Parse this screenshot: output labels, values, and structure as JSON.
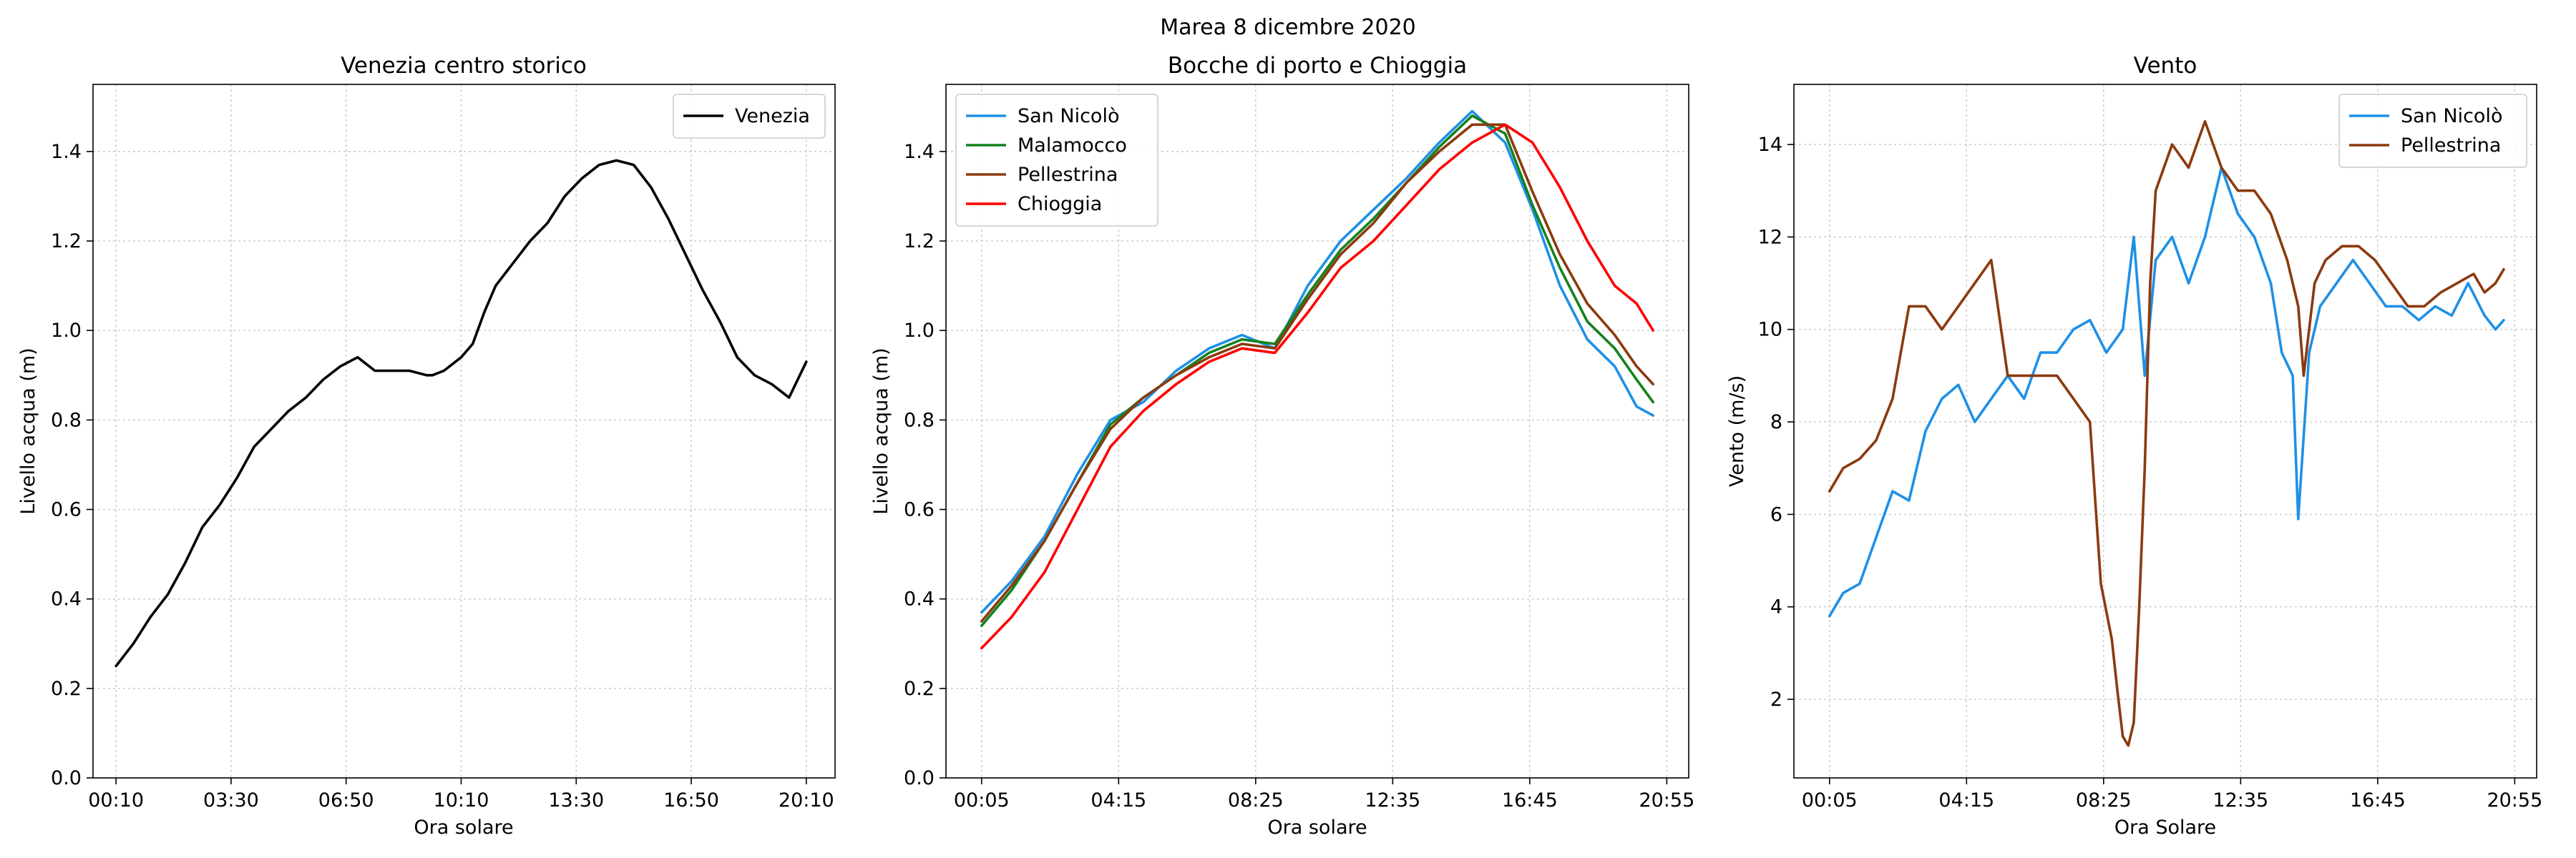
{
  "suptitle": "Marea 8 dicembre 2020",
  "colors": {
    "venezia": "#000000",
    "san_nicolo": "#1e90e6",
    "malamocco": "#14821e",
    "pellestrina": "#8b3a0f",
    "chioggia": "#ff0000",
    "grid": "#c8c8c8"
  },
  "chart_data": [
    {
      "type": "line",
      "title": "Venezia centro storico",
      "xlabel": "Ora solare",
      "ylabel": "Livello acqua (m)",
      "xlim": [
        -30,
        1260
      ],
      "ylim": [
        0,
        1.55
      ],
      "xticks": [
        10,
        210,
        410,
        610,
        810,
        1010,
        1210
      ],
      "xtick_labels": [
        "00:10",
        "03:30",
        "06:50",
        "10:10",
        "13:30",
        "16:50",
        "20:10"
      ],
      "yticks": [
        0.0,
        0.2,
        0.4,
        0.6,
        0.8,
        1.0,
        1.2,
        1.4
      ],
      "ytick_labels": [
        "0.0",
        "0.2",
        "0.4",
        "0.6",
        "0.8",
        "1.0",
        "1.2",
        "1.4"
      ],
      "grid": true,
      "legend": "top-right",
      "series": [
        {
          "name": "Venezia",
          "color": "#000000",
          "x": [
            10,
            40,
            70,
            100,
            130,
            160,
            190,
            220,
            250,
            280,
            310,
            340,
            370,
            400,
            430,
            460,
            490,
            520,
            550,
            560,
            580,
            600,
            610,
            630,
            650,
            670,
            700,
            730,
            760,
            790,
            820,
            850,
            880,
            910,
            940,
            970,
            1000,
            1030,
            1060,
            1090,
            1120,
            1150,
            1180,
            1210
          ],
          "y": [
            0.25,
            0.3,
            0.36,
            0.41,
            0.48,
            0.56,
            0.61,
            0.67,
            0.74,
            0.78,
            0.82,
            0.85,
            0.89,
            0.92,
            0.94,
            0.91,
            0.91,
            0.91,
            0.9,
            0.9,
            0.91,
            0.93,
            0.94,
            0.97,
            1.04,
            1.1,
            1.15,
            1.2,
            1.24,
            1.3,
            1.34,
            1.37,
            1.38,
            1.37,
            1.32,
            1.25,
            1.17,
            1.09,
            1.02,
            0.94,
            0.9,
            0.88,
            0.85,
            0.93
          ]
        }
      ]
    },
    {
      "type": "line",
      "title": "Bocche di porto e Chioggia",
      "xlabel": "Ora solare",
      "ylabel": "Livello acqua (m)",
      "xlim": [
        -60,
        1295
      ],
      "ylim": [
        0,
        1.55
      ],
      "xticks": [
        5,
        255,
        505,
        755,
        1005,
        1255
      ],
      "xtick_labels": [
        "00:05",
        "04:15",
        "08:25",
        "12:35",
        "16:45",
        "20:55"
      ],
      "yticks": [
        0.0,
        0.2,
        0.4,
        0.6,
        0.8,
        1.0,
        1.2,
        1.4
      ],
      "ytick_labels": [
        "0.0",
        "0.2",
        "0.4",
        "0.6",
        "0.8",
        "1.0",
        "1.2",
        "1.4"
      ],
      "grid": true,
      "legend": "top-left",
      "series": [
        {
          "name": "San Nicolò",
          "color": "#1e90e6",
          "x": [
            5,
            60,
            120,
            180,
            240,
            300,
            360,
            420,
            480,
            540,
            600,
            660,
            720,
            780,
            840,
            900,
            960,
            1010,
            1060,
            1110,
            1160,
            1200,
            1230
          ],
          "y": [
            0.37,
            0.44,
            0.54,
            0.68,
            0.8,
            0.84,
            0.91,
            0.96,
            0.99,
            0.96,
            1.1,
            1.2,
            1.27,
            1.34,
            1.42,
            1.49,
            1.42,
            1.27,
            1.1,
            0.98,
            0.92,
            0.83,
            0.81
          ]
        },
        {
          "name": "Malamocco",
          "color": "#14821e",
          "x": [
            5,
            60,
            120,
            180,
            240,
            300,
            360,
            420,
            480,
            540,
            600,
            660,
            720,
            780,
            840,
            900,
            960,
            1010,
            1060,
            1110,
            1160,
            1200,
            1230
          ],
          "y": [
            0.34,
            0.42,
            0.53,
            0.66,
            0.79,
            0.85,
            0.9,
            0.95,
            0.98,
            0.97,
            1.08,
            1.18,
            1.25,
            1.33,
            1.41,
            1.48,
            1.44,
            1.28,
            1.14,
            1.02,
            0.96,
            0.89,
            0.84
          ]
        },
        {
          "name": "Pellestrina",
          "color": "#8b3a0f",
          "x": [
            5,
            60,
            120,
            180,
            240,
            300,
            360,
            420,
            480,
            540,
            600,
            660,
            720,
            780,
            840,
            900,
            960,
            1010,
            1060,
            1110,
            1160,
            1200,
            1230
          ],
          "y": [
            0.35,
            0.43,
            0.53,
            0.66,
            0.78,
            0.85,
            0.9,
            0.94,
            0.97,
            0.96,
            1.07,
            1.17,
            1.24,
            1.33,
            1.4,
            1.46,
            1.46,
            1.31,
            1.17,
            1.06,
            0.99,
            0.92,
            0.88
          ]
        },
        {
          "name": "Chioggia",
          "color": "#ff0000",
          "x": [
            5,
            60,
            120,
            180,
            240,
            300,
            360,
            420,
            480,
            540,
            600,
            660,
            720,
            780,
            840,
            900,
            960,
            1010,
            1060,
            1110,
            1160,
            1200,
            1230
          ],
          "y": [
            0.29,
            0.36,
            0.46,
            0.6,
            0.74,
            0.82,
            0.88,
            0.93,
            0.96,
            0.95,
            1.04,
            1.14,
            1.2,
            1.28,
            1.36,
            1.42,
            1.46,
            1.42,
            1.32,
            1.2,
            1.1,
            1.06,
            1.0
          ]
        }
      ]
    },
    {
      "type": "line",
      "title": "Vento",
      "xlabel": "Ora Solare",
      "ylabel": "Vento (m/s)",
      "xlim": [
        -60,
        1295
      ],
      "ylim": [
        0.3,
        15.3
      ],
      "xticks": [
        5,
        255,
        505,
        755,
        1005,
        1255
      ],
      "xtick_labels": [
        "00:05",
        "04:15",
        "08:25",
        "12:35",
        "16:45",
        "20:55"
      ],
      "yticks": [
        2,
        4,
        6,
        8,
        10,
        12,
        14
      ],
      "ytick_labels": [
        "2",
        "4",
        "6",
        "8",
        "10",
        "12",
        "14"
      ],
      "grid": true,
      "legend": "top-right",
      "series": [
        {
          "name": "San Nicolò",
          "color": "#1e90e6",
          "x": [
            5,
            30,
            60,
            90,
            120,
            150,
            180,
            210,
            240,
            270,
            300,
            330,
            360,
            390,
            420,
            450,
            480,
            510,
            540,
            560,
            580,
            600,
            630,
            660,
            690,
            720,
            750,
            780,
            810,
            830,
            850,
            860,
            880,
            900,
            930,
            960,
            990,
            1020,
            1050,
            1080,
            1110,
            1140,
            1170,
            1200,
            1220,
            1235
          ],
          "y": [
            3.8,
            4.3,
            4.5,
            5.5,
            6.5,
            6.3,
            7.8,
            8.5,
            8.8,
            8.0,
            8.5,
            9.0,
            8.5,
            9.5,
            9.5,
            10.0,
            10.2,
            9.5,
            10.0,
            12.0,
            9.0,
            11.5,
            12.0,
            11.0,
            12.0,
            13.5,
            12.5,
            12.0,
            11.0,
            9.5,
            9.0,
            5.9,
            9.5,
            10.5,
            11.0,
            11.5,
            11.0,
            10.5,
            10.5,
            10.2,
            10.5,
            10.3,
            11.0,
            10.3,
            10.0,
            10.2
          ]
        },
        {
          "name": "Pellestrina",
          "color": "#8b3a0f",
          "x": [
            5,
            30,
            60,
            90,
            120,
            150,
            180,
            210,
            240,
            270,
            300,
            330,
            360,
            390,
            420,
            450,
            480,
            500,
            520,
            530,
            540,
            550,
            560,
            570,
            580,
            590,
            600,
            615,
            630,
            660,
            690,
            720,
            750,
            780,
            810,
            840,
            860,
            870,
            890,
            910,
            940,
            970,
            1000,
            1030,
            1060,
            1090,
            1120,
            1150,
            1180,
            1200,
            1220,
            1235
          ],
          "y": [
            6.5,
            7.0,
            7.2,
            7.6,
            8.5,
            10.5,
            10.5,
            10.0,
            10.5,
            11.0,
            11.5,
            9.0,
            9.0,
            9.0,
            9.0,
            8.5,
            8.0,
            4.5,
            3.3,
            2.2,
            1.2,
            1.0,
            1.5,
            4.0,
            7.0,
            11.0,
            13.0,
            13.5,
            14.0,
            13.5,
            14.5,
            13.5,
            13.0,
            13.0,
            12.5,
            11.5,
            10.5,
            9.0,
            11.0,
            11.5,
            11.8,
            11.8,
            11.5,
            11.0,
            10.5,
            10.5,
            10.8,
            11.0,
            11.2,
            10.8,
            11.0,
            11.3
          ]
        }
      ]
    }
  ]
}
